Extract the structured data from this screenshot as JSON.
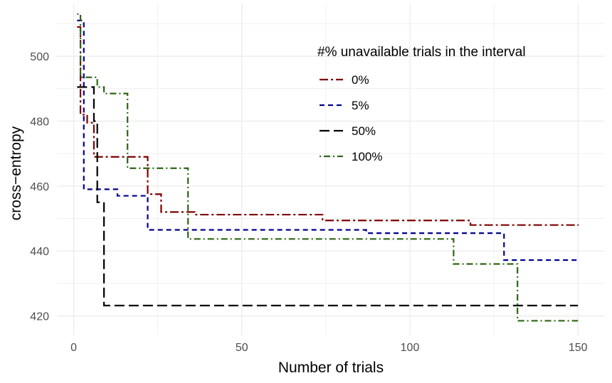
{
  "chart_data": {
    "type": "line",
    "step": true,
    "title": "",
    "xlabel": "Number of trials",
    "ylabel": "cross−entropy",
    "xlim": [
      -5,
      158
    ],
    "ylim": [
      414,
      516
    ],
    "xticks": [
      0,
      50,
      100,
      150
    ],
    "xtick_labels": [
      "0",
      "50",
      "100",
      "150"
    ],
    "yticks": [
      420,
      440,
      460,
      480,
      500
    ],
    "ytick_labels": [
      "420",
      "440",
      "460",
      "480",
      "500"
    ],
    "grid": true,
    "legend": {
      "title": "#% unavailable trials in the interval",
      "position": "top-right (inside)"
    },
    "series": [
      {
        "name": "0%",
        "color": "#7f0000",
        "dash": "dashdot",
        "points": [
          [
            1,
            509
          ],
          [
            2,
            482
          ],
          [
            4,
            479.5
          ],
          [
            6,
            469
          ],
          [
            22,
            457.5
          ],
          [
            26,
            452
          ],
          [
            36,
            451.2
          ],
          [
            74,
            449.4
          ],
          [
            118,
            448
          ],
          [
            150,
            447.8
          ]
        ]
      },
      {
        "name": "5%",
        "color": "#00008b",
        "dash": "dashed",
        "points": [
          [
            1,
            511
          ],
          [
            3,
            459
          ],
          [
            13,
            457
          ],
          [
            22,
            446.5
          ],
          [
            87,
            445.5
          ],
          [
            128,
            437.2
          ],
          [
            150,
            437.2
          ]
        ]
      },
      {
        "name": "50%",
        "color": "#000000",
        "dash": "longdash",
        "points": [
          [
            1,
            490.5
          ],
          [
            6,
            480
          ],
          [
            7,
            455
          ],
          [
            9,
            423.2
          ],
          [
            150,
            423.2
          ]
        ]
      },
      {
        "name": "100%",
        "color": "#2d6614",
        "dash": "dotdash",
        "points": [
          [
            1,
            513
          ],
          [
            2,
            493.5
          ],
          [
            7,
            490.5
          ],
          [
            9,
            488.5
          ],
          [
            16,
            465.5
          ],
          [
            34,
            443.7
          ],
          [
            113,
            436
          ],
          [
            132,
            418.5
          ],
          [
            150,
            418.5
          ]
        ]
      }
    ]
  }
}
